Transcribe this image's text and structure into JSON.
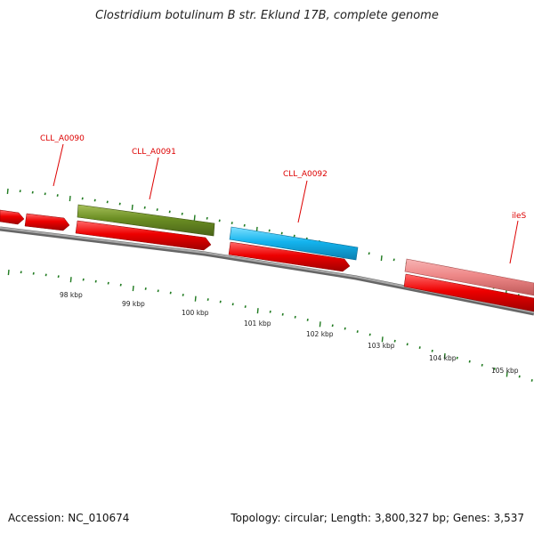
{
  "title": "Clostridium botulinum B str. Eklund 17B, complete genome",
  "genes": [
    {
      "label": "CLL_A0090",
      "color": "#dd0000"
    },
    {
      "label": "CLL_A0091",
      "color": "#6b8e23"
    },
    {
      "label": "CLL_A0092",
      "color": "#14b4ee"
    },
    {
      "label": "ileS",
      "color": "#ee8888"
    }
  ],
  "kbp_labels": [
    "98 kbp",
    "99 kbp",
    "100 kbp",
    "101 kbp",
    "102 kbp",
    "103 kbp",
    "104 kbp",
    "105 kbp"
  ],
  "footer": {
    "accession": "Accession: NC_010674",
    "summary": "Topology: circular; Length: 3,800,327 bp; Genes: 3,537"
  },
  "colors": {
    "feature_red": "#ee0000",
    "backbone": "#888888",
    "tick_green": "#1f7a1f",
    "label_red": "#dd0000"
  }
}
